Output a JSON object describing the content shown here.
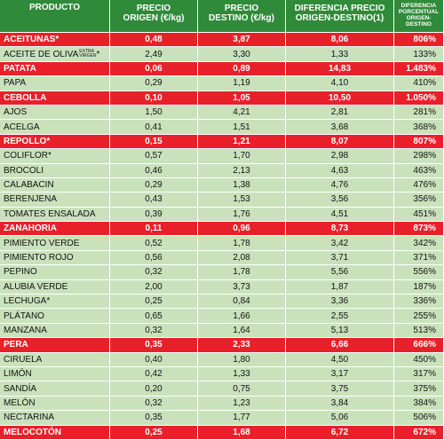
{
  "header": {
    "producto": "PRODUCTO",
    "origen_line1": "PRECIO",
    "origen_line2": "ORIGEN (€/kg)",
    "destino_line1": "PRECIO",
    "destino_line2": "DESTINO (€/kg)",
    "diferencia_line1": "DIFERENCIA PRECIO",
    "diferencia_line2": "ORIGEN-DESTINO(1)",
    "porcentual_line1": "DIFERENCIA",
    "porcentual_line2": "PORCENTUAL",
    "porcentual_line3": "ORIGEN-DESTINO"
  },
  "rows": [
    {
      "name": "ACEITUNAS*",
      "origen": "0,48",
      "destino": "3,87",
      "diferencia": "8,06",
      "porcentaje": "806%",
      "highlight": true
    },
    {
      "name": "ACEITE DE OLIVA",
      "suffix_top": "EXTRA",
      "suffix_bottom": "VIRGEN",
      "suffix_mark": "*",
      "origen": "2,49",
      "destino": "3,30",
      "diferencia": "1,33",
      "porcentaje": "133%",
      "highlight": false
    },
    {
      "name": "PATATA",
      "origen": "0,06",
      "destino": "0,89",
      "diferencia": "14,83",
      "porcentaje": "1.483%",
      "highlight": true
    },
    {
      "name": "PAPA",
      "origen": "0,29",
      "destino": "1,19",
      "diferencia": "4,10",
      "porcentaje": "410%",
      "highlight": false
    },
    {
      "name": "CEBOLLA",
      "origen": "0,10",
      "destino": "1,05",
      "diferencia": "10,50",
      "porcentaje": "1.050%",
      "highlight": true
    },
    {
      "name": "AJOS",
      "origen": "1,50",
      "destino": "4,21",
      "diferencia": "2,81",
      "porcentaje": "281%",
      "highlight": false
    },
    {
      "name": "ACELGA",
      "origen": "0,41",
      "destino": "1,51",
      "diferencia": "3,68",
      "porcentaje": "368%",
      "highlight": false
    },
    {
      "name": "REPOLLO*",
      "origen": "0,15",
      "destino": "1,21",
      "diferencia": "8,07",
      "porcentaje": "807%",
      "highlight": true
    },
    {
      "name": "COLIFLOR*",
      "origen": "0,57",
      "destino": "1,70",
      "diferencia": "2,98",
      "porcentaje": "298%",
      "highlight": false
    },
    {
      "name": "BROCOLI",
      "origen": "0,46",
      "destino": "2,13",
      "diferencia": "4,63",
      "porcentaje": "463%",
      "highlight": false
    },
    {
      "name": "CALABACIN",
      "origen": "0,29",
      "destino": "1,38",
      "diferencia": "4,76",
      "porcentaje": "476%",
      "highlight": false
    },
    {
      "name": "BERENJENA",
      "origen": "0,43",
      "destino": "1,53",
      "diferencia": "3,56",
      "porcentaje": "356%",
      "highlight": false
    },
    {
      "name": "TOMATES ENSALADA",
      "origen": "0,39",
      "destino": "1,76",
      "diferencia": "4,51",
      "porcentaje": "451%",
      "highlight": false
    },
    {
      "name": "ZANAHORIA",
      "origen": "0,11",
      "destino": "0,96",
      "diferencia": "8,73",
      "porcentaje": "873%",
      "highlight": true
    },
    {
      "name": "PIMIENTO VERDE",
      "origen": "0,52",
      "destino": "1,78",
      "diferencia": "3,42",
      "porcentaje": "342%",
      "highlight": false
    },
    {
      "name": "PIMIENTO ROJO",
      "origen": "0,56",
      "destino": "2,08",
      "diferencia": "3,71",
      "porcentaje": "371%",
      "highlight": false
    },
    {
      "name": "PEPINO",
      "origen": "0,32",
      "destino": "1,78",
      "diferencia": "5,56",
      "porcentaje": "556%",
      "highlight": false
    },
    {
      "name": "ALUBIA VERDE",
      "origen": "2,00",
      "destino": "3,73",
      "diferencia": "1,87",
      "porcentaje": "187%",
      "highlight": false
    },
    {
      "name": "LECHUGA*",
      "origen": "0,25",
      "destino": "0,84",
      "diferencia": "3,36",
      "porcentaje": "336%",
      "highlight": false
    },
    {
      "name": "PLÁTANO",
      "origen": "0,65",
      "destino": "1,66",
      "diferencia": "2,55",
      "porcentaje": "255%",
      "highlight": false
    },
    {
      "name": "MANZANA",
      "origen": "0,32",
      "destino": "1,64",
      "diferencia": "5,13",
      "porcentaje": "513%",
      "highlight": false
    },
    {
      "name": "PERA",
      "origen": "0,35",
      "destino": "2,33",
      "diferencia": "6,66",
      "porcentaje": "666%",
      "highlight": true
    },
    {
      "name": "CIRUELA",
      "origen": "0,40",
      "destino": "1,80",
      "diferencia": "4,50",
      "porcentaje": "450%",
      "highlight": false
    },
    {
      "name": "LIMÓN",
      "origen": "0,42",
      "destino": "1,33",
      "diferencia": "3,17",
      "porcentaje": "317%",
      "highlight": false
    },
    {
      "name": "SANDÍA",
      "origen": "0,20",
      "destino": "0,75",
      "diferencia": "3,75",
      "porcentaje": "375%",
      "highlight": false
    },
    {
      "name": "MELÓN",
      "origen": "0,32",
      "destino": "1,23",
      "diferencia": "3,84",
      "porcentaje": "384%",
      "highlight": false
    },
    {
      "name": "NECTARINA",
      "origen": "0,35",
      "destino": "1,77",
      "diferencia": "5,06",
      "porcentaje": "506%",
      "highlight": false
    },
    {
      "name": "MELOCOTÓN",
      "origen": "0,25",
      "destino": "1,68",
      "diferencia": "6,72",
      "porcentaje": "672%",
      "highlight": true
    }
  ],
  "colors": {
    "header_bg": "#2f8a3a",
    "row_bg": "#c9e2bc",
    "highlight_bg": "#e8202a"
  }
}
